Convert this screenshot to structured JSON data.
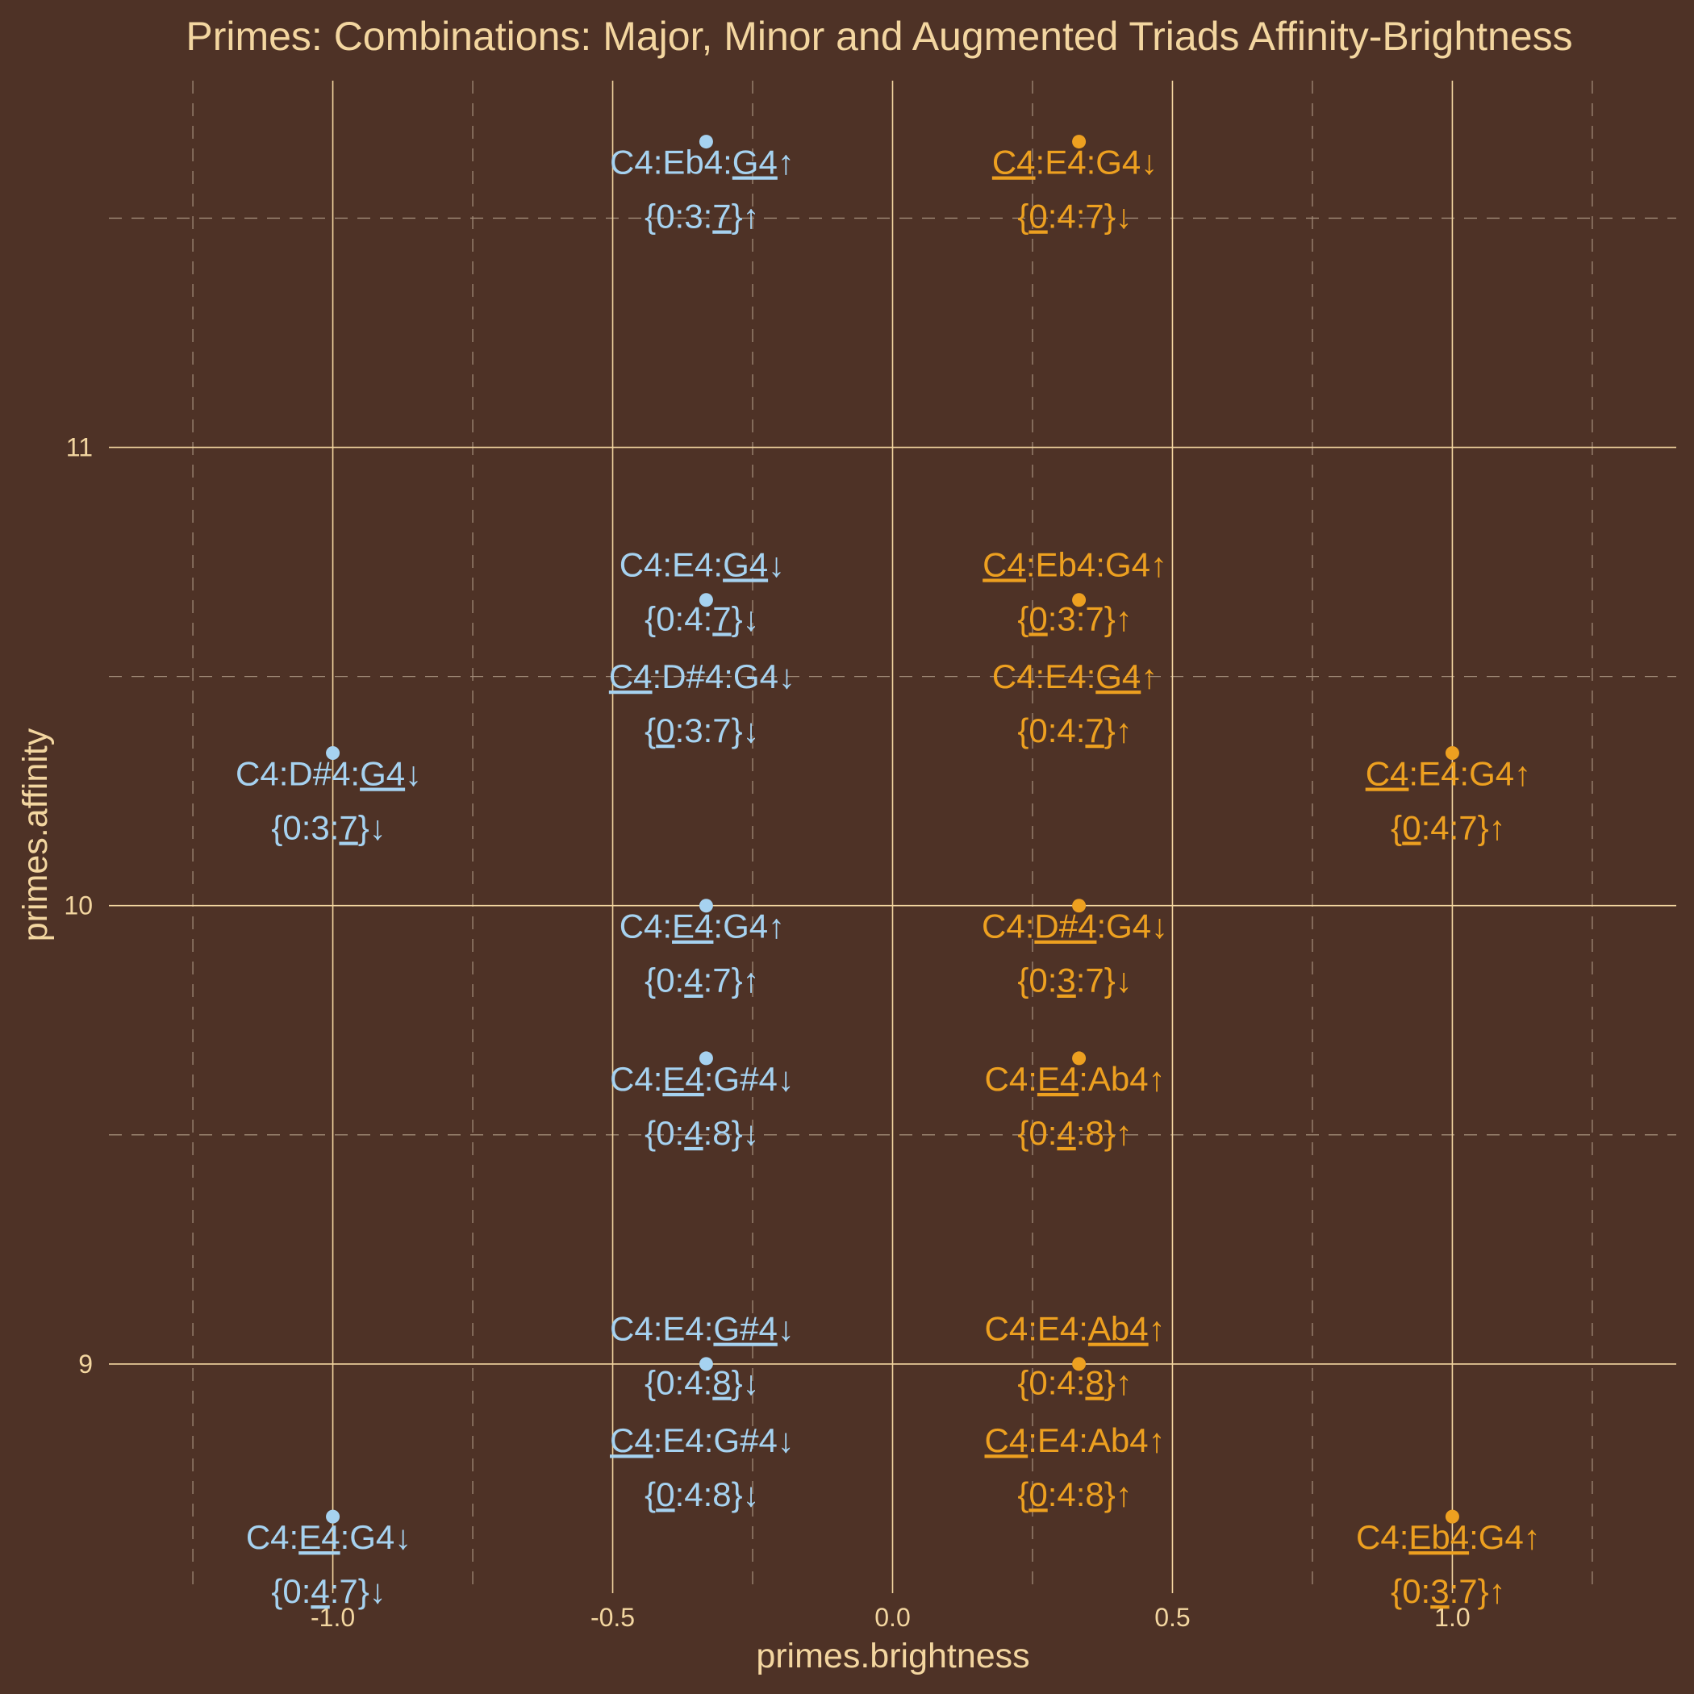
{
  "chart_data": {
    "type": "scatter",
    "title": "Primes: Combinations: Major, Minor and Augmented Triads Affinity-Brightness",
    "xlabel": "primes.brightness",
    "ylabel": "primes.affinity",
    "xlim": [
      -1.4,
      1.4
    ],
    "ylim": [
      8.5,
      11.8
    ],
    "xticks": [
      "-1.0",
      "-0.5",
      "0.0",
      "0.5",
      "1.0"
    ],
    "yticks": [
      "9",
      "10",
      "11"
    ],
    "grid": true,
    "colors": {
      "background": "#4e3226",
      "text": "#f3d6a0",
      "blue": "#a6d2f0",
      "orange": "#eda020"
    },
    "points": [
      {
        "x": -0.333,
        "y": 11.667,
        "color": "#a6d2f0",
        "pre": "C4:Eb4:",
        "u": "G4",
        "post": "",
        "arrow": "↑",
        "spre": "{0:3:",
        "su": "7",
        "spost": "}",
        "sarrow": "↑"
      },
      {
        "x": 0.333,
        "y": 11.667,
        "color": "#eda020",
        "pre": "",
        "u": "C4",
        "post": ":E4:G4",
        "arrow": "↓",
        "spre": "{",
        "su": "0",
        "spost": ":4:7}",
        "sarrow": "↓"
      },
      {
        "x": -0.333,
        "y": 10.667,
        "color": "#a6d2f0",
        "pre": "C4:E4:",
        "u": "G4",
        "post": "",
        "arrow": "↓",
        "spre": "{0:4:",
        "su": "7",
        "spost": "}",
        "sarrow": "↓"
      },
      {
        "x": -0.333,
        "y": 10.667,
        "color": "#a6d2f0",
        "pre": "",
        "u": "C4",
        "post": ":D#4:G4",
        "arrow": "↓",
        "spre": "{",
        "su": "0",
        "spost": ":3:7}",
        "sarrow": "↓"
      },
      {
        "x": 0.333,
        "y": 10.667,
        "color": "#eda020",
        "pre": "",
        "u": "C4",
        "post": ":Eb4:G4",
        "arrow": "↑",
        "spre": "{",
        "su": "0",
        "spost": ":3:7}",
        "sarrow": "↑"
      },
      {
        "x": 0.333,
        "y": 10.667,
        "color": "#eda020",
        "pre": "C4:E4:",
        "u": "G4",
        "post": "",
        "arrow": "↑",
        "spre": "{0:4:",
        "su": "7",
        "spost": "}",
        "sarrow": "↑"
      },
      {
        "x": -1.0,
        "y": 10.333,
        "color": "#a6d2f0",
        "pre": "C4:D#4:",
        "u": "G4",
        "post": "",
        "arrow": "↓",
        "spre": "{0:3:",
        "su": "7",
        "spost": "}",
        "sarrow": "↓"
      },
      {
        "x": 1.0,
        "y": 10.333,
        "color": "#eda020",
        "pre": "",
        "u": "C4",
        "post": ":E4:G4",
        "arrow": "↑",
        "spre": "{",
        "su": "0",
        "spost": ":4:7}",
        "sarrow": "↑"
      },
      {
        "x": -0.333,
        "y": 10.0,
        "color": "#a6d2f0",
        "pre": "C4:",
        "u": "E4",
        "post": ":G4",
        "arrow": "↑",
        "spre": "{0:",
        "su": "4",
        "spost": ":7}",
        "sarrow": "↑"
      },
      {
        "x": 0.333,
        "y": 10.0,
        "color": "#eda020",
        "pre": "C4:",
        "u": "D#4",
        "post": ":G4",
        "arrow": "↓",
        "spre": "{0:",
        "su": "3",
        "spost": ":7}",
        "sarrow": "↓"
      },
      {
        "x": -0.333,
        "y": 9.667,
        "color": "#a6d2f0",
        "pre": "C4:",
        "u": "E4",
        "post": ":G#4",
        "arrow": "↓",
        "spre": "{0:",
        "su": "4",
        "spost": ":8}",
        "sarrow": "↓"
      },
      {
        "x": 0.333,
        "y": 9.667,
        "color": "#eda020",
        "pre": "C4:",
        "u": "E4",
        "post": ":Ab4",
        "arrow": "↑",
        "spre": "{0:",
        "su": "4",
        "spost": ":8}",
        "sarrow": "↑"
      },
      {
        "x": -0.333,
        "y": 9.0,
        "color": "#a6d2f0",
        "pre": "C4:E4:",
        "u": "G#4",
        "post": "",
        "arrow": "↓",
        "spre": "{0:4:",
        "su": "8",
        "spost": "}",
        "sarrow": "↓"
      },
      {
        "x": -0.333,
        "y": 9.0,
        "color": "#a6d2f0",
        "pre": "",
        "u": "C4",
        "post": ":E4:G#4",
        "arrow": "↓",
        "spre": "{",
        "su": "0",
        "spost": ":4:8}",
        "sarrow": "↓"
      },
      {
        "x": 0.333,
        "y": 9.0,
        "color": "#eda020",
        "pre": "C4:E4:",
        "u": "Ab4",
        "post": "",
        "arrow": "↑",
        "spre": "{0:4:",
        "su": "8",
        "spost": "}",
        "sarrow": "↑"
      },
      {
        "x": 0.333,
        "y": 9.0,
        "color": "#eda020",
        "pre": "",
        "u": "C4",
        "post": ":E4:Ab4",
        "arrow": "↑",
        "spre": "{",
        "su": "0",
        "spost": ":4:8}",
        "sarrow": "↑"
      },
      {
        "x": -1.0,
        "y": 8.667,
        "color": "#a6d2f0",
        "pre": "C4:",
        "u": "E4",
        "post": ":G4",
        "arrow": "↓",
        "spre": "{0:",
        "su": "4",
        "spost": ":7}",
        "sarrow": "↓"
      },
      {
        "x": 1.0,
        "y": 8.667,
        "color": "#eda020",
        "pre": "C4:",
        "u": "Eb4",
        "post": ":G4",
        "arrow": "↑",
        "spre": "{0:",
        "su": "3",
        "spost": ":7}",
        "sarrow": "↑"
      }
    ]
  }
}
